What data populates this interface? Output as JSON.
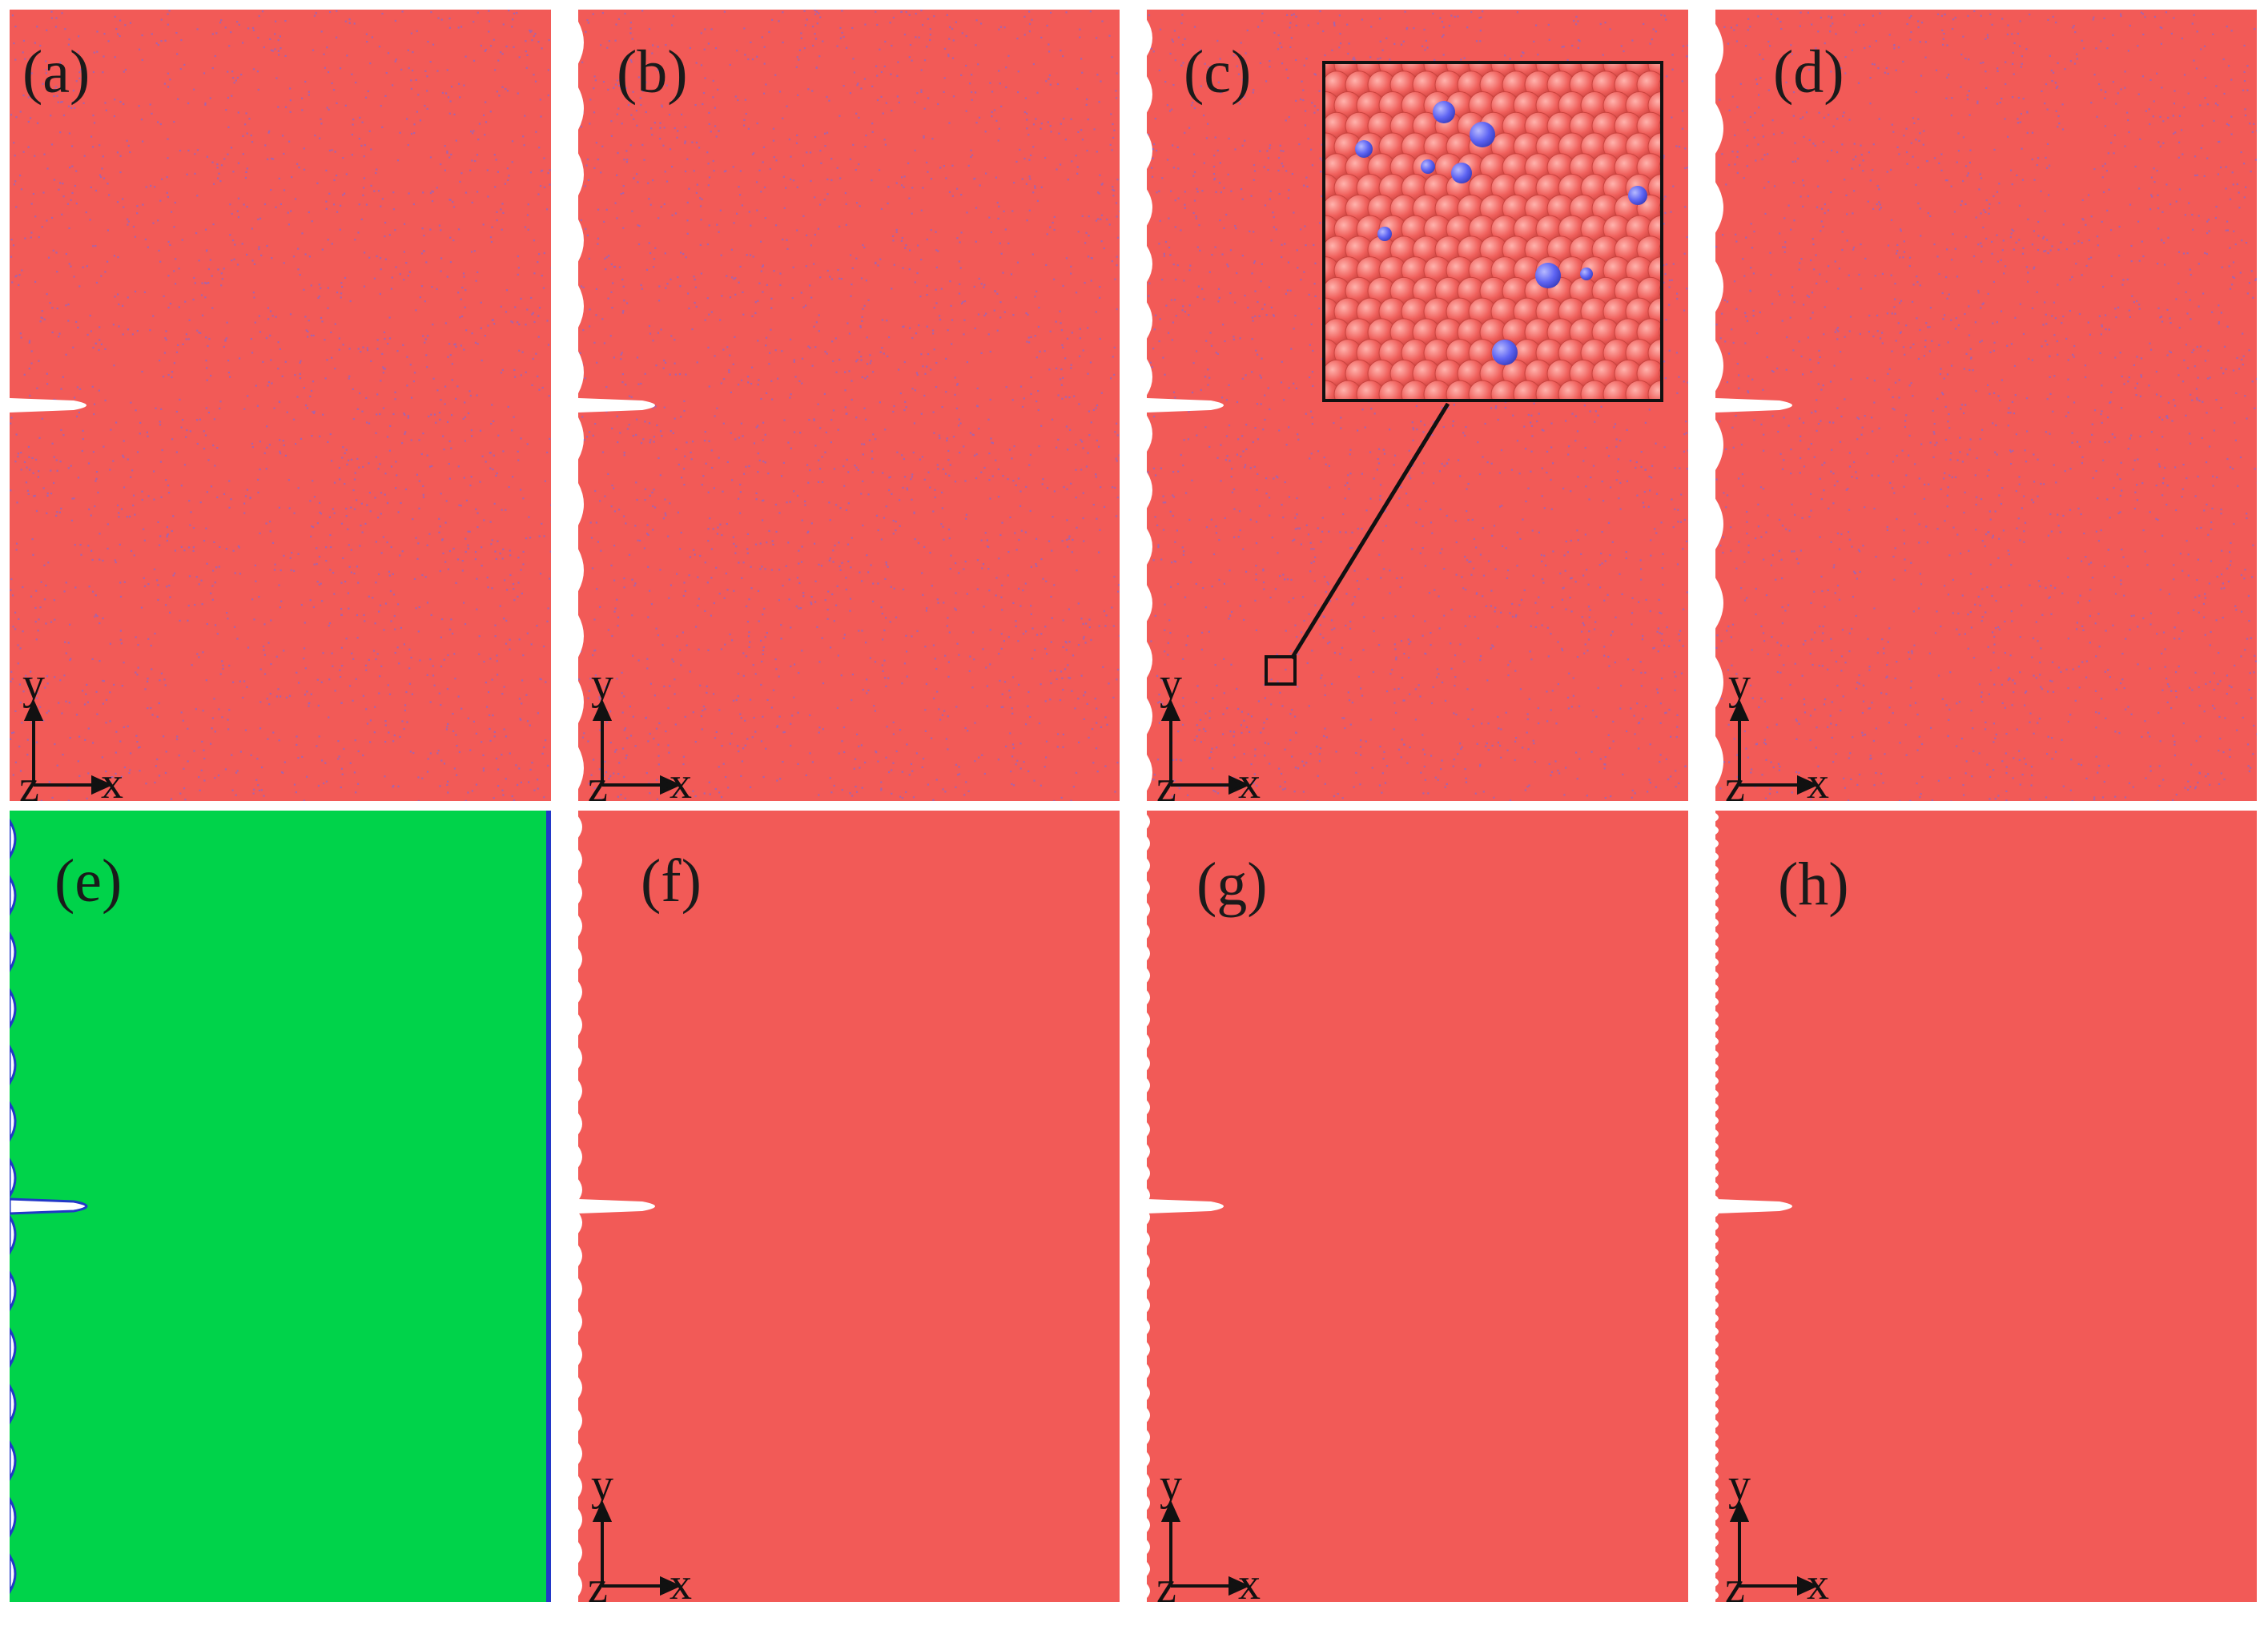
{
  "figure": {
    "panels": [
      {
        "id": "a",
        "label": "(a)",
        "material": "red-with-blue-dots",
        "notches": 0
      },
      {
        "id": "b",
        "label": "(b)",
        "material": "red-with-blue-dots",
        "notches": 12
      },
      {
        "id": "c",
        "label": "(c)",
        "material": "red-with-blue-dots",
        "notches": 14
      },
      {
        "id": "d",
        "label": "(d)",
        "material": "red-with-blue-dots",
        "notches": 10
      },
      {
        "id": "e",
        "label": "(e)",
        "material": "green",
        "notches": 14
      },
      {
        "id": "f",
        "label": "(f)",
        "material": "red",
        "notches": 24
      },
      {
        "id": "g",
        "label": "(g)",
        "material": "red",
        "notches": 36
      },
      {
        "id": "h",
        "label": "(h)",
        "material": "red",
        "notches": 60
      }
    ],
    "axis_labels": {
      "y": "y",
      "x": "x",
      "z": "z"
    },
    "colors": {
      "matrix": "#f25a57",
      "solute": "#6a6cf0",
      "green_phase": "#00d34a",
      "boundary": "#2238c8",
      "crack": "#ffffff"
    },
    "inset": {
      "of_panel": "c",
      "atom_color": "#f0605c",
      "solute_color": "#5d63f2"
    }
  }
}
